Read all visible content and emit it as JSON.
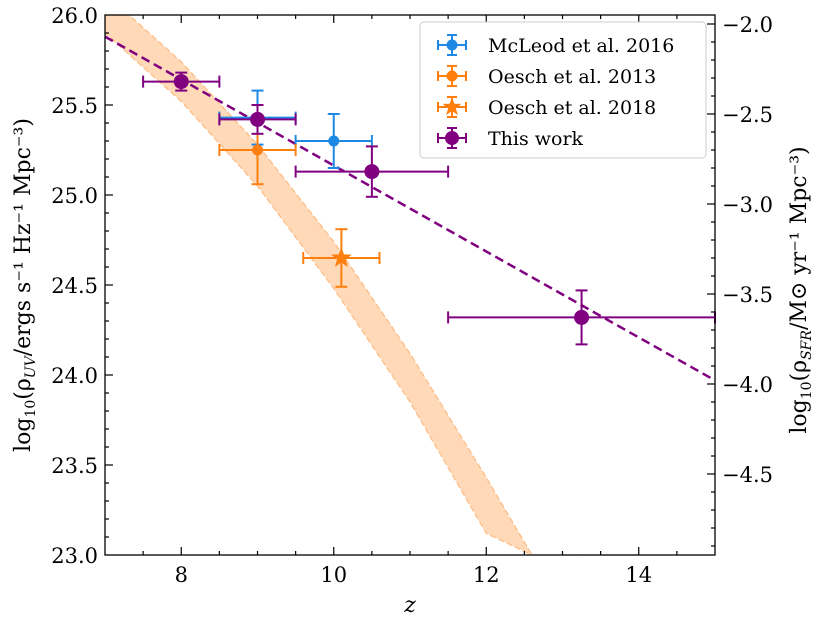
{
  "chart_data": {
    "type": "scatter",
    "xlabel": "z",
    "ylabel_left": {
      "pre": "log",
      "sub1": "10",
      "mid": "(ρ",
      "sub2": "UV",
      "post": "/ergs s⁻¹ Hz⁻¹ Mpc⁻³)"
    },
    "ylabel_right": {
      "pre": "log",
      "sub1": "10",
      "mid": "(ρ",
      "sub2": "SFR",
      "post": "/M⊙ yr⁻¹ Mpc⁻³)"
    },
    "xlim": [
      7,
      15
    ],
    "ylim_left": [
      23.0,
      26.0
    ],
    "ylim_right": [
      -4.95,
      -1.95
    ],
    "x_ticks": [
      8,
      10,
      12,
      14
    ],
    "x_tick_labels": [
      "8",
      "10",
      "12",
      "14"
    ],
    "y_left_ticks": [
      23.0,
      23.5,
      24.0,
      24.5,
      25.0,
      25.5,
      26.0
    ],
    "y_left_tick_labels": [
      "23.0",
      "23.5",
      "24.0",
      "24.5",
      "25.0",
      "25.5",
      "26.0"
    ],
    "y_right_ticks": [
      -2.0,
      -2.5,
      -3.0,
      -3.5,
      -4.0,
      -4.5
    ],
    "y_right_tick_labels": [
      "−2.0",
      "−2.5",
      "−3.0",
      "−3.5",
      "−4.0",
      "−4.5"
    ],
    "colors": {
      "mcleod": "#1e88e5",
      "oesch13": "#ff7f0e",
      "oesch18": "#ff7f0e",
      "this_work": "#800080",
      "band": "#ffd9b8",
      "band_edge": "#ffbb80",
      "fit": "#800080"
    },
    "legend_position": "top-right",
    "series": [
      {
        "name": "McLeod et al. 2016",
        "key": "mcleod",
        "marker": "circle",
        "points": [
          {
            "x": 9.0,
            "y": 25.43,
            "xerr": 0.5,
            "yerr": 0.15
          },
          {
            "x": 10.0,
            "y": 25.3,
            "xerr": 0.5,
            "yerr": 0.15
          }
        ]
      },
      {
        "name": "Oesch et al. 2013",
        "key": "oesch13",
        "marker": "circle",
        "points": [
          {
            "x": 9.0,
            "y": 25.25,
            "xerr": 0.5,
            "yerr": 0.19
          }
        ]
      },
      {
        "name": "Oesch et al. 2018",
        "key": "oesch18",
        "marker": "star",
        "points": [
          {
            "x": 10.1,
            "y": 24.65,
            "xerr": 0.5,
            "yerr": 0.16
          }
        ]
      },
      {
        "name": "This work",
        "key": "this_work",
        "marker": "circle",
        "points": [
          {
            "x": 8.0,
            "y": 25.63,
            "xerr": 0.5,
            "yerr": 0.05
          },
          {
            "x": 9.0,
            "y": 25.42,
            "xerr": 0.5,
            "yerr": 0.08
          },
          {
            "x": 10.5,
            "y": 25.13,
            "xerr": 1.0,
            "yerr": 0.14
          },
          {
            "x": 13.25,
            "y": 24.32,
            "xerr": 1.75,
            "yerr": 0.15
          }
        ]
      }
    ],
    "fit_line": {
      "x": [
        7.0,
        15.0
      ],
      "y": [
        25.88,
        23.97
      ],
      "style": "dashed"
    },
    "model_band": {
      "x": [
        7.0,
        8.0,
        9.0,
        10.0,
        11.0,
        12.0,
        12.6,
        14.0
      ],
      "upper": [
        26.12,
        25.74,
        25.28,
        24.74,
        24.12,
        23.43,
        23.0,
        23.0
      ],
      "lower": [
        25.9,
        25.52,
        25.05,
        24.48,
        23.85,
        23.12,
        23.0,
        23.0
      ]
    }
  }
}
